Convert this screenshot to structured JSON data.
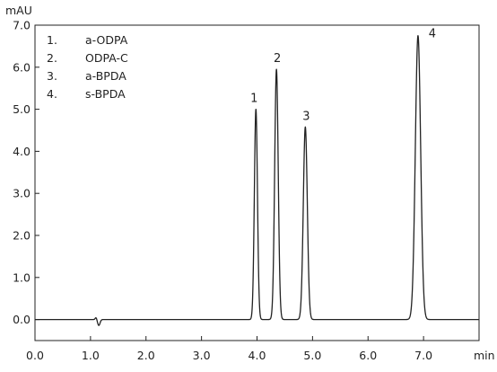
{
  "chart_data": {
    "type": "line",
    "title": "",
    "xlabel": "",
    "ylabel": "",
    "x_unit": "min",
    "y_unit": "mAU",
    "xlim": [
      0.0,
      8.0
    ],
    "ylim": [
      -0.5,
      7.0
    ],
    "x_ticks": [
      "0.0",
      "1.0",
      "2.0",
      "3.0",
      "4.0",
      "5.0",
      "6.0",
      "7.0"
    ],
    "y_ticks": [
      "0.0",
      "1.0",
      "2.0",
      "3.0",
      "4.0",
      "5.0",
      "6.0",
      "7.0"
    ],
    "grid": false,
    "legend_position": "top-left",
    "legend": [
      {
        "num": "1.",
        "name": "a-ODPA"
      },
      {
        "num": "2.",
        "name": "ODPA-C"
      },
      {
        "num": "3.",
        "name": "a-BPDA"
      },
      {
        "num": "4.",
        "name": "s-BPDA"
      }
    ],
    "baseline": 0.0,
    "injection_disturbance": {
      "time": 1.12,
      "down": -0.14,
      "up": 0.05
    },
    "peaks": [
      {
        "label": "1",
        "time": 3.98,
        "height": 5.0,
        "width": 0.028
      },
      {
        "label": "2",
        "time": 4.35,
        "height": 5.95,
        "width": 0.032
      },
      {
        "label": "3",
        "time": 4.87,
        "height": 4.58,
        "width": 0.036
      },
      {
        "label": "4",
        "time": 6.9,
        "height": 6.75,
        "width": 0.048
      }
    ],
    "line_color": "#222222"
  }
}
